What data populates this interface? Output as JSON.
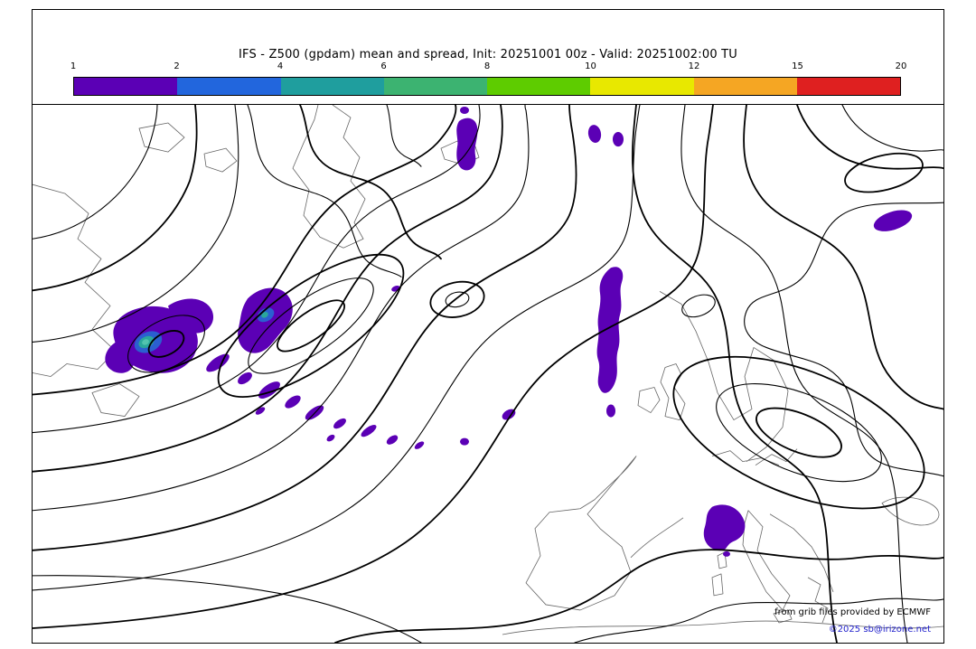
{
  "title": "IFS - Z500 (gpdam) mean and spread, Init: 20251001 00z - Valid: 20251002:00 TU",
  "colorbar": {
    "ticks": [
      "1",
      "2",
      "4",
      "6",
      "8",
      "10",
      "12",
      "15",
      "20"
    ],
    "colors": [
      "#5b00b5",
      "#2266dd",
      "#1f9e9e",
      "#3cb371",
      "#5ecc00",
      "#e8e800",
      "#f5a623",
      "#df2020"
    ]
  },
  "colors": {
    "spread_fill": "#5b00b5",
    "spread_ring_blue": "#2b5fd0",
    "spread_core_teal": "#2aa79b",
    "spread_core_light": "#52c4ae",
    "contour": "#000000",
    "coastline": "#555555",
    "link": "#2222cc"
  },
  "footer": {
    "line1": "from grib files provided by ECMWF",
    "line2": "©2025 sb@irizone.net"
  },
  "chart_data": {
    "type": "contour-map",
    "title": "IFS - Z500 (gpdam) mean and spread",
    "init": "20251001 00z",
    "valid": "20251002:00 TU",
    "units": "gpdam",
    "colorbar_levels": [
      1,
      2,
      4,
      6,
      8,
      10,
      12,
      15,
      20
    ],
    "contours": "ensemble mean Z500 shown as black contour lines",
    "shading": "ensemble spread shaded; visible patches in the 1-6 gpdam range (purple with small blue/teal cores)"
  }
}
